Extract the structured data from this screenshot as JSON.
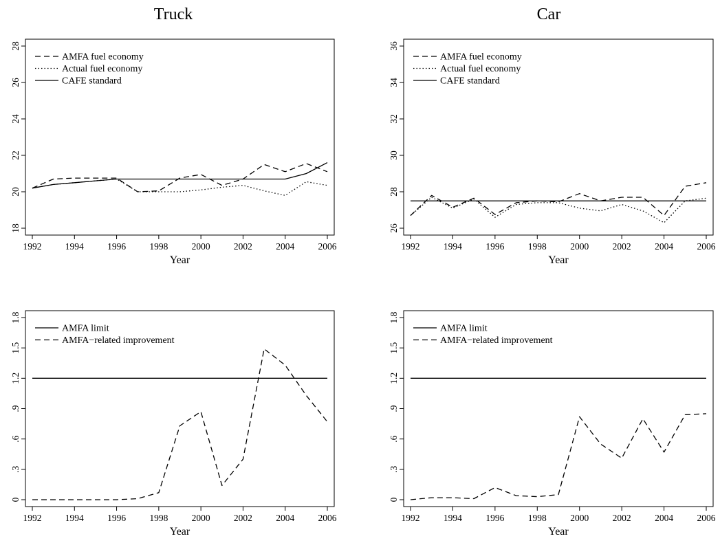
{
  "column_titles": [
    "Truck",
    "Car"
  ],
  "chart_data": [
    {
      "id": "truck-fuel",
      "type": "line",
      "title": "Truck",
      "xlabel": "Year",
      "ylabel": "",
      "xlim": [
        1992,
        2006
      ],
      "ylim": [
        18,
        28
      ],
      "xticks": [
        1992,
        1994,
        1996,
        1998,
        2000,
        2002,
        2004,
        2006
      ],
      "yticks": [
        18,
        20,
        22,
        24,
        26,
        28
      ],
      "ytick_labels": [
        "18",
        "20",
        "22",
        "24",
        "26",
        "28"
      ],
      "grid": false,
      "legend": "top-left",
      "x": [
        1992,
        1993,
        1994,
        1995,
        1996,
        1997,
        1998,
        1999,
        2000,
        2001,
        2002,
        2003,
        2004,
        2005,
        2006
      ],
      "series": [
        {
          "name": "AMFA fuel economy",
          "style": "dashed",
          "values": [
            20.2,
            20.7,
            20.75,
            20.75,
            20.75,
            20.0,
            20.05,
            20.75,
            20.95,
            20.35,
            20.7,
            21.5,
            21.1,
            21.55,
            21.1
          ]
        },
        {
          "name": "Actual fuel economy",
          "style": "dotted",
          "values": [
            20.2,
            20.4,
            20.5,
            20.6,
            20.7,
            20.0,
            20.0,
            20.0,
            20.1,
            20.25,
            20.35,
            20.05,
            19.8,
            20.55,
            20.35
          ]
        },
        {
          "name": "CAFE standard",
          "style": "solid",
          "values": [
            20.2,
            20.4,
            20.5,
            20.6,
            20.7,
            20.7,
            20.7,
            20.7,
            20.7,
            20.7,
            20.7,
            20.7,
            20.7,
            21.0,
            21.6
          ]
        }
      ]
    },
    {
      "id": "car-fuel",
      "type": "line",
      "title": "Car",
      "xlabel": "Year",
      "ylabel": "",
      "xlim": [
        1992,
        2006
      ],
      "ylim": [
        26,
        36
      ],
      "xticks": [
        1992,
        1994,
        1996,
        1998,
        2000,
        2002,
        2004,
        2006
      ],
      "yticks": [
        26,
        28,
        30,
        32,
        34,
        36
      ],
      "ytick_labels": [
        "26",
        "28",
        "30",
        "32",
        "34",
        "36"
      ],
      "grid": false,
      "legend": "top-left",
      "x": [
        1992,
        1993,
        1994,
        1995,
        1996,
        1997,
        1998,
        1999,
        2000,
        2001,
        2002,
        2003,
        2004,
        2005,
        2006
      ],
      "series": [
        {
          "name": "AMFA fuel economy",
          "style": "dashed",
          "values": [
            26.7,
            27.8,
            27.15,
            27.65,
            26.75,
            27.4,
            27.5,
            27.45,
            27.9,
            27.5,
            27.7,
            27.7,
            26.7,
            28.3,
            28.5
          ]
        },
        {
          "name": "Actual fuel economy",
          "style": "dotted",
          "values": [
            26.7,
            27.7,
            27.1,
            27.6,
            26.6,
            27.3,
            27.4,
            27.4,
            27.1,
            26.95,
            27.3,
            26.95,
            26.3,
            27.5,
            27.65
          ]
        },
        {
          "name": "CAFE standard",
          "style": "solid",
          "values": [
            27.5,
            27.5,
            27.5,
            27.5,
            27.5,
            27.5,
            27.5,
            27.5,
            27.5,
            27.5,
            27.5,
            27.5,
            27.5,
            27.5,
            27.5
          ]
        }
      ]
    },
    {
      "id": "truck-amfa",
      "type": "line",
      "title": "",
      "xlabel": "Year",
      "ylabel": "",
      "xlim": [
        1992,
        2006
      ],
      "ylim": [
        0,
        1.8
      ],
      "xticks": [
        1992,
        1994,
        1996,
        1998,
        2000,
        2002,
        2004,
        2006
      ],
      "yticks": [
        0,
        0.3,
        0.6,
        0.9,
        1.2,
        1.5,
        1.8
      ],
      "ytick_labels": [
        "0",
        ".3",
        ".6",
        ".9",
        "1.2",
        "1.5",
        "1.8"
      ],
      "grid": false,
      "legend": "top-left",
      "x": [
        1992,
        1993,
        1994,
        1995,
        1996,
        1997,
        1998,
        1999,
        2000,
        2001,
        2002,
        2003,
        2004,
        2005,
        2006
      ],
      "series": [
        {
          "name": "AMFA limit",
          "style": "solid",
          "values": [
            1.2,
            1.2,
            1.2,
            1.2,
            1.2,
            1.2,
            1.2,
            1.2,
            1.2,
            1.2,
            1.2,
            1.2,
            1.2,
            1.2,
            1.2
          ]
        },
        {
          "name": "AMFA−related improvement",
          "style": "dashed",
          "values": [
            0.0,
            0.0,
            0.0,
            0.0,
            0.0,
            0.01,
            0.07,
            0.73,
            0.87,
            0.14,
            0.4,
            1.49,
            1.33,
            1.03,
            0.77
          ]
        }
      ]
    },
    {
      "id": "car-amfa",
      "type": "line",
      "title": "",
      "xlabel": "Year",
      "ylabel": "",
      "xlim": [
        1992,
        2006
      ],
      "ylim": [
        0,
        1.8
      ],
      "xticks": [
        1992,
        1994,
        1996,
        1998,
        2000,
        2002,
        2004,
        2006
      ],
      "yticks": [
        0,
        0.3,
        0.6,
        0.9,
        1.2,
        1.5,
        1.8
      ],
      "ytick_labels": [
        "0",
        ".3",
        ".6",
        ".9",
        "1.2",
        "1.5",
        "1.8"
      ],
      "grid": false,
      "legend": "top-left",
      "x": [
        1992,
        1993,
        1994,
        1995,
        1996,
        1997,
        1998,
        1999,
        2000,
        2001,
        2002,
        2003,
        2004,
        2005,
        2006
      ],
      "series": [
        {
          "name": "AMFA limit",
          "style": "solid",
          "values": [
            1.2,
            1.2,
            1.2,
            1.2,
            1.2,
            1.2,
            1.2,
            1.2,
            1.2,
            1.2,
            1.2,
            1.2,
            1.2,
            1.2,
            1.2
          ]
        },
        {
          "name": "AMFA−related improvement",
          "style": "dashed",
          "values": [
            0.0,
            0.02,
            0.02,
            0.01,
            0.12,
            0.04,
            0.03,
            0.05,
            0.82,
            0.55,
            0.41,
            0.8,
            0.47,
            0.84,
            0.85
          ]
        }
      ]
    }
  ]
}
